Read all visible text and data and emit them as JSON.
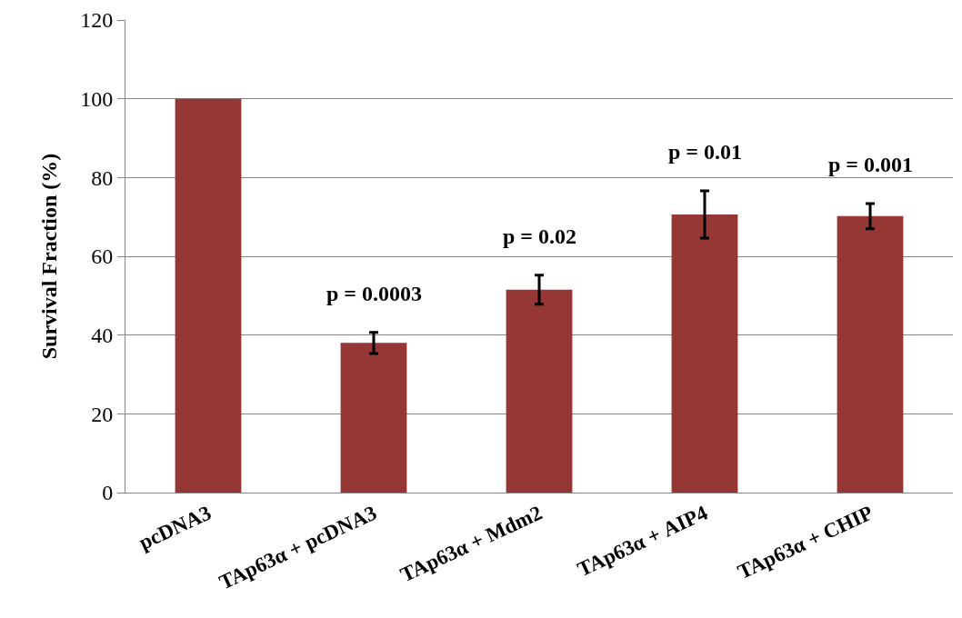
{
  "chart_data": {
    "type": "bar",
    "ylabel": "Survival Fraction (%)",
    "categories": [
      "pcDNA3",
      "TAp63α + pcDNA3",
      "TAp63α + Mdm2",
      "TAp63α + AIP4",
      "TAp63α + CHIP"
    ],
    "values": [
      100,
      38,
      51.5,
      70.6,
      70.2
    ],
    "errors": [
      null,
      2.7,
      3.7,
      6,
      3.2
    ],
    "color": "#953735",
    "ylim": [
      0,
      120
    ],
    "yticks": [
      0,
      20,
      40,
      60,
      80,
      100,
      120
    ],
    "grid": "y",
    "annotations": [
      "p = 0.0003",
      "p = 0.02",
      "p = 0.01",
      "p = 0.001"
    ]
  }
}
